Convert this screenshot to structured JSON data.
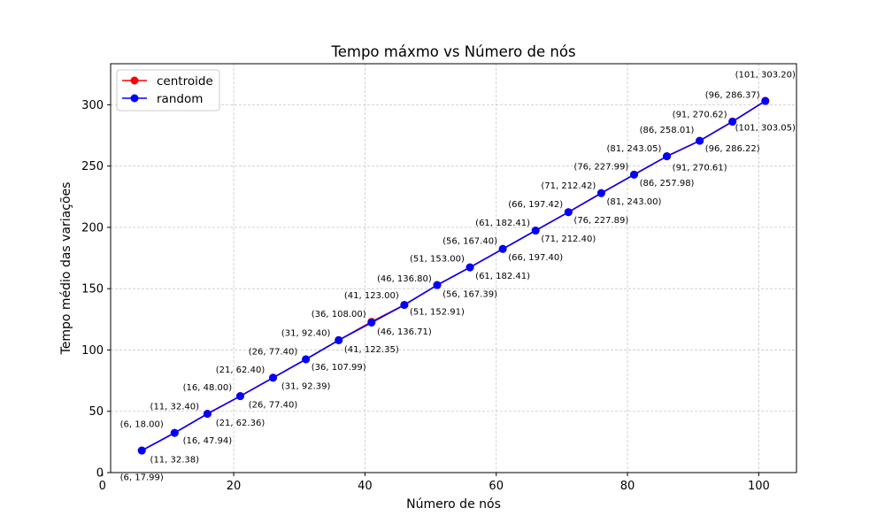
{
  "chart_data": {
    "type": "line",
    "title": "Tempo máxmo vs Número de nós",
    "xlabel": "Número de nós",
    "ylabel": "Tempo médio das variações",
    "xlim": [
      1.25,
      105.75
    ],
    "ylim": [
      0,
      333.46
    ],
    "xticks": [
      0,
      20,
      40,
      60,
      80,
      100
    ],
    "yticks": [
      0,
      50,
      100,
      150,
      200,
      250,
      300
    ],
    "x": [
      6,
      11,
      16,
      21,
      26,
      31,
      36,
      41,
      46,
      51,
      56,
      61,
      66,
      71,
      76,
      81,
      86,
      91,
      96,
      101
    ],
    "grid": true,
    "legend_position": "top-left",
    "series": [
      {
        "name": "centroide",
        "color": "#ff0000",
        "values": [
          18.0,
          32.4,
          48.0,
          62.4,
          77.4,
          92.4,
          108.0,
          123.0,
          136.8,
          153.0,
          167.4,
          182.41,
          197.42,
          212.42,
          227.99,
          243.05,
          258.01,
          270.62,
          286.37,
          303.2
        ],
        "labels": [
          "(6, 18.00)",
          "(11, 32.40)",
          "(16, 48.00)",
          "(21, 62.40)",
          "(26, 77.40)",
          "(31, 92.40)",
          "(36, 108.00)",
          "(41, 123.00)",
          "(46, 136.80)",
          "(51, 153.00)",
          "(56, 167.40)",
          "(61, 182.41)",
          "(66, 197.42)",
          "(71, 212.42)",
          "(76, 227.99)",
          "(81, 243.05)",
          "(86, 258.01)",
          "(91, 270.62)",
          "(96, 286.37)",
          "(101, 303.20)"
        ]
      },
      {
        "name": "random",
        "color": "#0000ff",
        "values": [
          17.99,
          32.38,
          47.94,
          62.36,
          77.4,
          92.39,
          107.99,
          122.35,
          136.71,
          152.91,
          167.39,
          182.41,
          197.4,
          212.4,
          227.89,
          243.0,
          257.98,
          270.61,
          286.22,
          303.05
        ],
        "labels": [
          "(6, 17.99)",
          "(11, 32.38)",
          "(16, 47.94)",
          "(21, 62.36)",
          "(26, 77.40)",
          "(31, 92.39)",
          "(36, 107.99)",
          "(41, 122.35)",
          "(46, 136.71)",
          "(51, 152.91)",
          "(56, 167.39)",
          "(61, 182.41)",
          "(66, 197.40)",
          "(71, 212.40)",
          "(76, 227.89)",
          "(81, 243.00)",
          "(86, 257.98)",
          "(91, 270.61)",
          "(96, 286.22)",
          "(101, 303.05)"
        ]
      }
    ]
  }
}
